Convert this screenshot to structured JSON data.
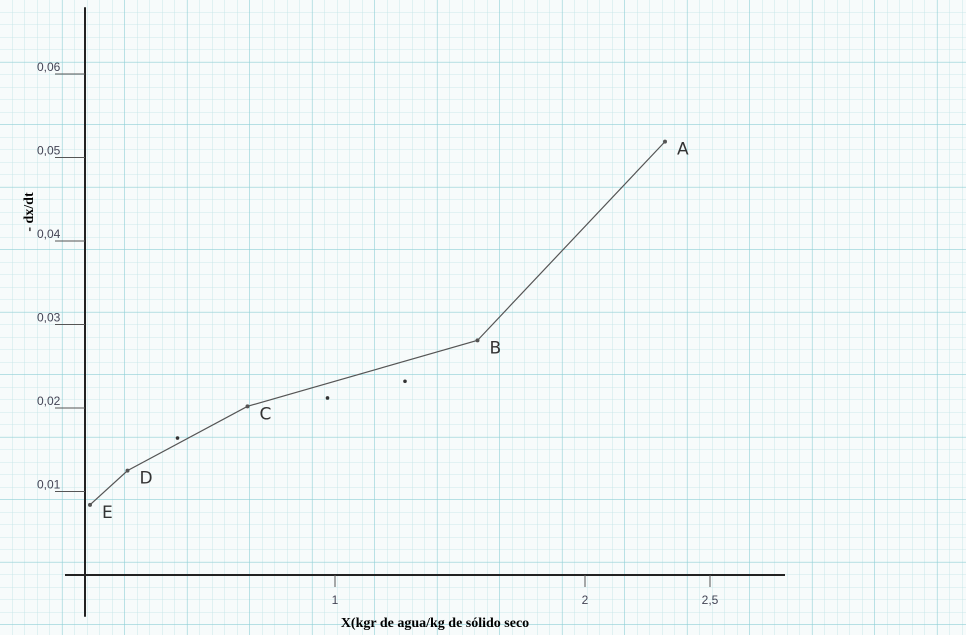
{
  "chart_data": {
    "type": "line",
    "x_label": "X(kgr de agua/kg de sólido seco",
    "y_label": "- dx/dt",
    "xlim": [
      -0.08,
      2.8
    ],
    "ylim": [
      -0.005,
      0.068
    ],
    "xticks": [
      1,
      2,
      {
        "value": 2.5,
        "label": "2,5"
      }
    ],
    "yticks": [
      {
        "value": 0.01,
        "label": "0,01"
      },
      {
        "value": 0.02,
        "label": "0,02"
      },
      {
        "value": 0.03,
        "label": "0,03"
      },
      {
        "value": 0.04,
        "label": "0,04"
      },
      {
        "value": 0.05,
        "label": "0,05"
      },
      {
        "value": 0.06,
        "label": "0,06"
      }
    ],
    "series": [
      {
        "color": "#555555",
        "x": [
          0.02,
          0.17,
          0.65,
          1.57,
          2.32
        ],
        "values": [
          0.0084,
          0.0125,
          0.0202,
          0.0281,
          0.0519
        ],
        "point_labels": [
          "E",
          "D",
          "C",
          "B",
          "A"
        ]
      }
    ],
    "points": {
      "color": "#333333",
      "x": [
        0.37,
        0.97,
        1.28
      ],
      "values": [
        0.0164,
        0.0212,
        0.0232
      ]
    }
  }
}
